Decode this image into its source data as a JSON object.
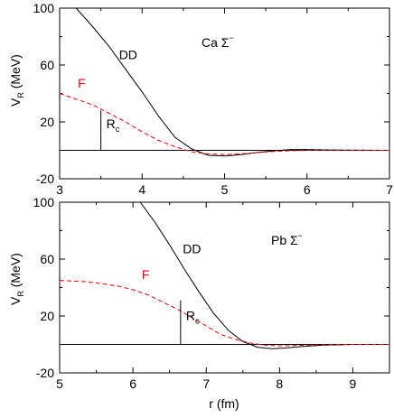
{
  "chart_data": [
    {
      "type": "line",
      "panel": "top",
      "xlim": [
        3,
        7
      ],
      "ylim": [
        -20,
        100
      ],
      "x_ticks": [
        "3",
        "4",
        "5",
        "6",
        "7"
      ],
      "y_ticks": [
        "-20",
        "20",
        "60",
        "100"
      ],
      "ylabel": "V",
      "ylabel_sub": "R",
      "ylabel_unit": " (MeV)",
      "xlabel": "",
      "annotation": "Ca Σ",
      "annotation_sup": "−",
      "rc_label": "R",
      "rc_sub": "c",
      "rc_x": 3.5,
      "rc_top": 28,
      "colors": {
        "DD": "#000000",
        "F": "#e8000b",
        "zero": "#000000"
      },
      "series": [
        {
          "name": "DD",
          "style": "solid",
          "x": [
            3.2,
            3.4,
            3.6,
            3.8,
            4.0,
            4.2,
            4.4,
            4.6,
            4.8,
            5.0,
            5.2,
            5.4,
            5.6,
            5.8,
            6.0,
            6.2,
            6.5,
            7.0
          ],
          "y": [
            100,
            87,
            73,
            57,
            41,
            24,
            9,
            1,
            -3.5,
            -4,
            -3,
            -1.5,
            -0.3,
            0.6,
            0.6,
            0.3,
            0.1,
            0
          ]
        },
        {
          "name": "F",
          "style": "dashed",
          "x": [
            3.0,
            3.2,
            3.4,
            3.6,
            3.8,
            4.0,
            4.2,
            4.4,
            4.6,
            4.8,
            5.0,
            5.2,
            5.4,
            5.6,
            5.8,
            6.0,
            6.3,
            6.6,
            7.0
          ],
          "y": [
            40,
            36,
            32,
            26,
            20,
            13,
            7,
            2.5,
            -1,
            -2.5,
            -3,
            -2.5,
            -1.5,
            -0.8,
            -0.3,
            0,
            0.1,
            0,
            0
          ]
        }
      ],
      "series_labels": [
        {
          "text": "DD",
          "x": 3.72,
          "y": 64
        },
        {
          "text": "F",
          "x": 3.22,
          "y": 44
        }
      ]
    },
    {
      "type": "line",
      "panel": "bottom",
      "xlim": [
        5,
        9.5
      ],
      "ylim": [
        -20,
        100
      ],
      "x_ticks": [
        "5",
        "6",
        "7",
        "8",
        "9"
      ],
      "y_ticks": [
        "-20",
        "20",
        "60",
        "100"
      ],
      "ylabel": "V",
      "ylabel_sub": "R",
      "ylabel_unit": " (MeV)",
      "xlabel": "r (fm)",
      "annotation": "Pb Σ",
      "annotation_sup": "−",
      "rc_label": "R",
      "rc_sub": "c",
      "rc_x": 6.65,
      "rc_top": 31,
      "colors": {
        "DD": "#000000",
        "F": "#e8000b",
        "zero": "#000000"
      },
      "series": [
        {
          "name": "DD",
          "style": "solid",
          "x": [
            6.1,
            6.3,
            6.5,
            6.7,
            6.9,
            7.1,
            7.3,
            7.5,
            7.7,
            7.9,
            8.1,
            8.3,
            8.6,
            9.0,
            9.5
          ],
          "y": [
            100,
            86,
            70,
            53,
            37,
            22,
            10,
            2,
            -2,
            -3,
            -2.5,
            -1.5,
            -0.5,
            0,
            0
          ]
        },
        {
          "name": "F",
          "style": "dashed",
          "x": [
            5.0,
            5.4,
            5.8,
            6.0,
            6.2,
            6.4,
            6.6,
            6.8,
            7.0,
            7.2,
            7.4,
            7.6,
            7.8,
            8.0,
            8.4,
            8.8,
            9.5
          ],
          "y": [
            45,
            44,
            41,
            38.5,
            35,
            30,
            25,
            19,
            13,
            7,
            3.5,
            1,
            -0.5,
            -1,
            -0.5,
            0,
            0
          ]
        }
      ],
      "series_labels": [
        {
          "text": "DD",
          "x": 6.68,
          "y": 64
        },
        {
          "text": "F",
          "x": 6.12,
          "y": 46
        }
      ]
    }
  ]
}
